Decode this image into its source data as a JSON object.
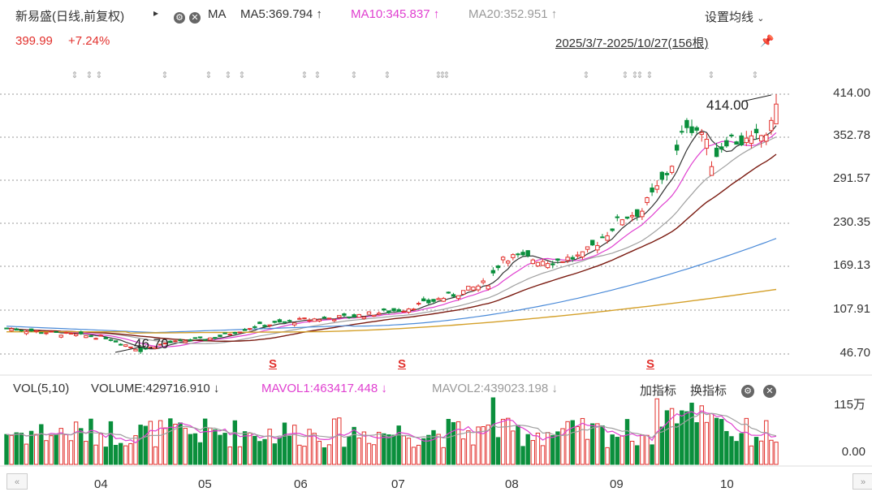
{
  "header": {
    "stock_title": "新易盛(日线,前复权)",
    "play_icon": "▸",
    "ma_label": "MA",
    "ma5": "MA5:369.794 ↑",
    "ma10": "MA10:345.837 ↑",
    "ma20": "MA20:352.951 ↑",
    "settings_label": "设置均线",
    "price": "399.99",
    "change": "+7.24%",
    "range": "2025/3/7-2025/10/27(156根)"
  },
  "colors": {
    "up": "#e2312d",
    "down": "#0a8f3c",
    "ma5": "#333333",
    "ma10": "#e040d0",
    "ma20": "#a0a0a0",
    "ma30": "#7a1a10",
    "ma60": "#4a8ad8",
    "ma120": "#d4a02a"
  },
  "volume_header": {
    "vol_label": "VOL(5,10)",
    "volume": "VOLUME:429716.910 ↓",
    "mavol1": "MAVOL1:463417.448 ↓",
    "mavol2": "MAVOL2:439023.198 ↓",
    "add_indicator": "加指标",
    "switch_indicator": "换指标"
  },
  "chart_data": {
    "type": "candlestick",
    "price_axis_ticks": [
      "414.00",
      "352.78",
      "291.57",
      "230.35",
      "169.13",
      "107.91",
      "46.70"
    ],
    "price_range": [
      46.7,
      414.0
    ],
    "volume_axis_ticks": [
      "115万",
      "0.00"
    ],
    "x_tick_labels": [
      "04",
      "05",
      "06",
      "07",
      "08",
      "09",
      "10"
    ],
    "annotations": {
      "high": "414.00",
      "low": "46.70"
    },
    "signal_marks": [
      "S",
      "S",
      "S"
    ],
    "grid": true
  }
}
